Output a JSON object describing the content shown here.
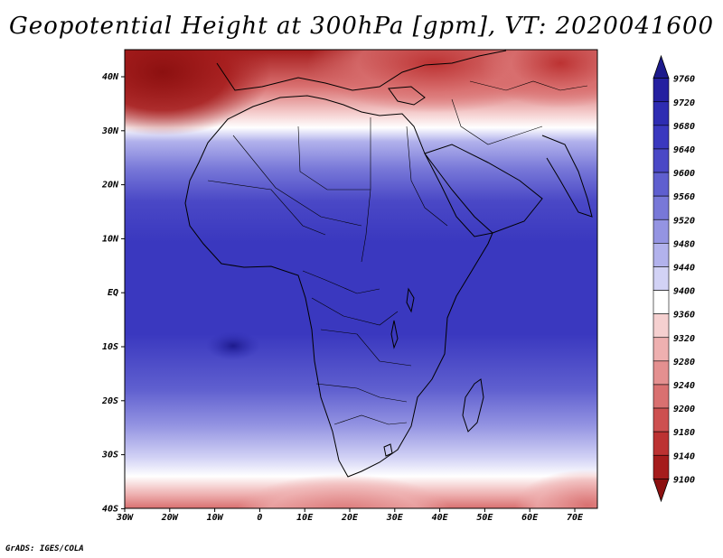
{
  "title": "Geopotential Height at 300hPa [gpm], VT: 2020041600",
  "footer": "GrADS: IGES/COLA",
  "map": {
    "lat_labels": [
      "40N",
      "30N",
      "20N",
      "10N",
      "EQ",
      "10S",
      "20S",
      "30S",
      "40S"
    ],
    "lon_labels": [
      "30W",
      "20W",
      "10W",
      "0",
      "10E",
      "20E",
      "30E",
      "40E",
      "50E",
      "60E",
      "70E"
    ]
  },
  "colorbar": {
    "labels": [
      "9760",
      "9720",
      "9680",
      "9640",
      "9600",
      "9560",
      "9520",
      "9480",
      "9440",
      "9400",
      "9360",
      "9320",
      "9280",
      "9240",
      "9200",
      "9180",
      "9140",
      "9100"
    ],
    "colors": [
      "#1d1a8c",
      "#2520a0",
      "#2e2cb2",
      "#3a38bf",
      "#4a48c6",
      "#5f5fcf",
      "#7878d8",
      "#9494e2",
      "#b2b2ec",
      "#d2d2f5",
      "#ffffff",
      "#f5d0d0",
      "#eeb0b0",
      "#e49090",
      "#d97070",
      "#cd5050",
      "#bc3232",
      "#a51c1c",
      "#8c1010"
    ]
  }
}
